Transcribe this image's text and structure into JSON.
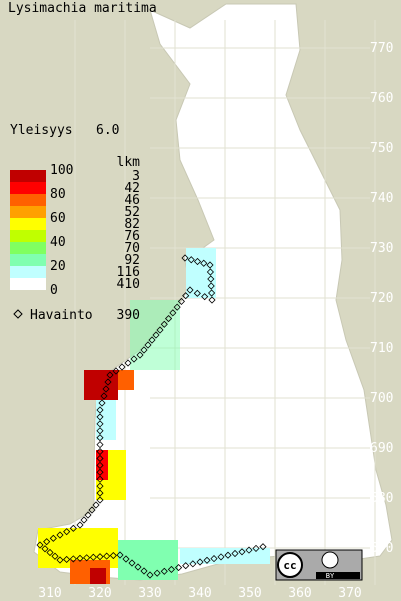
{
  "title": "Lysimachia maritima",
  "frequency": {
    "label": "Yleisyys",
    "value": "6.0"
  },
  "scale_labels": [
    100,
    80,
    60,
    40,
    20,
    0
  ],
  "count_header": "lkm",
  "counts": [
    3,
    42,
    46,
    52,
    82,
    76,
    70,
    92,
    116,
    410
  ],
  "observation": {
    "label": "Havainto",
    "count": 390
  },
  "grid_y": [
    770,
    760,
    750,
    740,
    730,
    720,
    710,
    700,
    690,
    680,
    670
  ],
  "grid_x": [
    310,
    320,
    330,
    340,
    350,
    360,
    370
  ],
  "license": {
    "cc": "cc",
    "by": "BY"
  }
}
